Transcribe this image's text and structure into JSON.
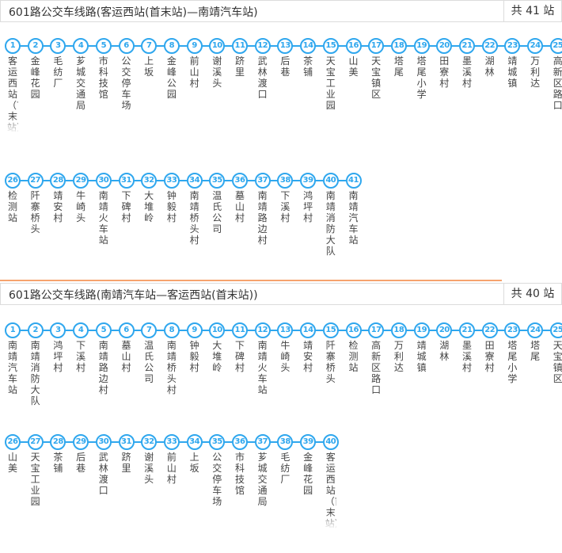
{
  "routes": [
    {
      "title": "601路公交车线路(客运西站(首末站)—南靖汽车站)",
      "count": "共 41 站",
      "stops": [
        "客运西站（首末站）",
        "金峰花园",
        "毛纺厂",
        "芗城交通局",
        "市科技馆",
        "公交停车场",
        "上坂",
        "金峰公园",
        "前山村",
        "谢溪头",
        "跻里",
        "武林渡口",
        "后巷",
        "茶铺",
        "天宝工业园",
        "山美",
        "天宝镇区",
        "塔尾",
        "塔尾小学",
        "田寮村",
        "墨溪村",
        "湖林",
        "靖城镇",
        "万利达",
        "高新区路口",
        "检测站",
        "阡寨桥头",
        "靖安村",
        "牛崎头",
        "南靖火车站",
        "下碑村",
        "大堆岭",
        "钟毅村",
        "南靖桥头村",
        "温氏公司",
        "墓山村",
        "南靖路边村",
        "下溪村",
        "鸿坪村",
        "南靖消防大队",
        "南靖汽车站"
      ]
    },
    {
      "title": "601路公交车线路(南靖汽车站—客运西站(首末站))",
      "count": "共 40 站",
      "stops": [
        "南靖汽车站",
        "南靖消防大队",
        "鸿坪村",
        "下溪村",
        "南靖路边村",
        "墓山村",
        "温氏公司",
        "南靖桥头村",
        "钟毅村",
        "大堆岭",
        "下碑村",
        "南靖火车站",
        "牛崎头",
        "靖安村",
        "阡寨桥头",
        "检测站",
        "高新区路口",
        "万利达",
        "靖城镇",
        "湖林",
        "墨溪村",
        "田寮村",
        "塔尾小学",
        "塔尾",
        "天宝镇区",
        "山美",
        "天宝工业园",
        "茶铺",
        "后巷",
        "武林渡口",
        "跻里",
        "谢溪头",
        "前山村",
        "上坂",
        "公交停车场",
        "市科技馆",
        "芗城交通局",
        "毛纺厂",
        "金峰花园",
        "客运西站（首末站）"
      ]
    }
  ]
}
